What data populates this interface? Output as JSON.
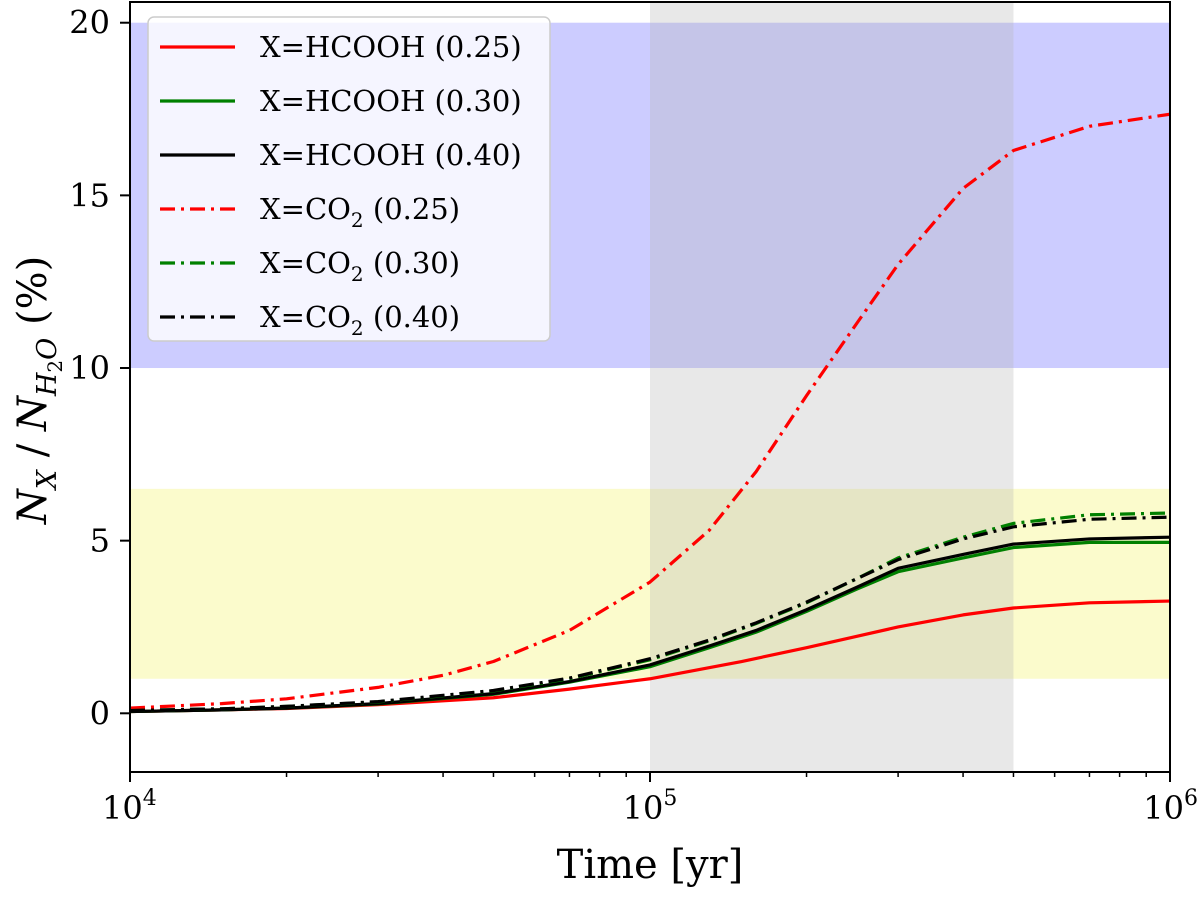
{
  "chart_data": {
    "type": "line",
    "xscale": "log",
    "xlim": [
      10000,
      1000000
    ],
    "ylim": [
      -1.7,
      20.6
    ],
    "xlabel": "Time [yr]",
    "ylabel_parts": {
      "n1": "N",
      "sub1": "X",
      "slash": " / ",
      "n2": "N",
      "sub2": "H",
      "sub2b": "2",
      "sub2c": "O",
      "unit": " (%)"
    },
    "xticks": [
      {
        "value": 10000,
        "base": "10",
        "exp": "4"
      },
      {
        "value": 100000,
        "base": "10",
        "exp": "5"
      },
      {
        "value": 1000000,
        "base": "10",
        "exp": "6"
      }
    ],
    "yticks": [
      {
        "value": 0,
        "label": "0"
      },
      {
        "value": 5,
        "label": "5"
      },
      {
        "value": 10,
        "label": "10"
      },
      {
        "value": 15,
        "label": "15"
      },
      {
        "value": 20,
        "label": "20"
      }
    ],
    "bands": [
      {
        "name": "co2-observed-range",
        "axis": "y",
        "from": 10,
        "to": 20,
        "color": "#ccccff"
      },
      {
        "name": "hcooh-observed-range",
        "axis": "y",
        "from": 1,
        "to": 6.5,
        "color": "#fbfbcc"
      },
      {
        "name": "time-window",
        "axis": "x",
        "from": 100000,
        "to": 500000,
        "color": "#b7b7b7",
        "opacity": 0.32
      }
    ],
    "series": [
      {
        "name": "X=HCOOH (0.25)",
        "label_main": "X=HCOOH",
        "label_sub": "",
        "label_tail": " (0.25)",
        "color": "#ff0000",
        "dash": "solid",
        "x": [
          10000,
          15000,
          20000,
          30000,
          50000,
          70000,
          100000,
          150000,
          200000,
          300000,
          400000,
          500000,
          700000,
          1000000
        ],
        "y": [
          0.05,
          0.1,
          0.14,
          0.25,
          0.45,
          0.7,
          1.0,
          1.5,
          1.9,
          2.5,
          2.85,
          3.05,
          3.2,
          3.25
        ]
      },
      {
        "name": "X=HCOOH (0.30)",
        "label_main": "X=HCOOH",
        "label_sub": "",
        "label_tail": " (0.30)",
        "color": "#008000",
        "dash": "solid",
        "x": [
          10000,
          15000,
          20000,
          30000,
          50000,
          70000,
          100000,
          130000,
          160000,
          200000,
          250000,
          300000,
          400000,
          500000,
          700000,
          1000000
        ],
        "y": [
          0.05,
          0.1,
          0.15,
          0.27,
          0.55,
          0.9,
          1.35,
          1.9,
          2.35,
          2.95,
          3.6,
          4.1,
          4.5,
          4.8,
          4.95,
          4.95
        ]
      },
      {
        "name": "X=HCOOH (0.40)",
        "label_main": "X=HCOOH",
        "label_sub": "",
        "label_tail": " (0.40)",
        "color": "#000000",
        "dash": "solid",
        "x": [
          10000,
          15000,
          20000,
          30000,
          50000,
          70000,
          100000,
          130000,
          160000,
          200000,
          250000,
          300000,
          400000,
          500000,
          700000,
          1000000
        ],
        "y": [
          0.05,
          0.1,
          0.15,
          0.28,
          0.57,
          0.92,
          1.4,
          1.95,
          2.4,
          3.0,
          3.65,
          4.2,
          4.6,
          4.9,
          5.05,
          5.1
        ]
      },
      {
        "name": "X=CO2 (0.25)",
        "label_main": "X=CO",
        "label_sub": "2",
        "label_tail": " (0.25)",
        "color": "#ff0000",
        "dash": "dashdot",
        "x": [
          10000,
          15000,
          20000,
          30000,
          40000,
          50000,
          70000,
          100000,
          130000,
          160000,
          200000,
          250000,
          300000,
          400000,
          500000,
          700000,
          1000000
        ],
        "y": [
          0.15,
          0.28,
          0.42,
          0.75,
          1.1,
          1.5,
          2.4,
          3.8,
          5.3,
          7.0,
          9.2,
          11.3,
          13.0,
          15.2,
          16.3,
          17.0,
          17.35
        ]
      },
      {
        "name": "X=CO2 (0.30)",
        "label_main": "X=CO",
        "label_sub": "2",
        "label_tail": " (0.30)",
        "color": "#008000",
        "dash": "dashdot",
        "x": [
          10000,
          15000,
          20000,
          30000,
          50000,
          70000,
          100000,
          130000,
          160000,
          200000,
          250000,
          300000,
          400000,
          500000,
          700000,
          1000000
        ],
        "y": [
          0.08,
          0.13,
          0.2,
          0.33,
          0.65,
          1.0,
          1.55,
          2.1,
          2.6,
          3.2,
          3.9,
          4.5,
          5.1,
          5.5,
          5.75,
          5.8
        ]
      },
      {
        "name": "X=CO2 (0.40)",
        "label_main": "X=CO",
        "label_sub": "2",
        "label_tail": " (0.40)",
        "color": "#000000",
        "dash": "dashdot",
        "x": [
          10000,
          15000,
          20000,
          30000,
          50000,
          70000,
          100000,
          130000,
          160000,
          200000,
          250000,
          300000,
          400000,
          500000,
          700000,
          1000000
        ],
        "y": [
          0.08,
          0.13,
          0.2,
          0.34,
          0.66,
          1.02,
          1.58,
          2.12,
          2.62,
          3.22,
          3.9,
          4.45,
          5.05,
          5.4,
          5.62,
          5.68
        ]
      }
    ],
    "legend": {
      "position": "upper-left"
    }
  }
}
